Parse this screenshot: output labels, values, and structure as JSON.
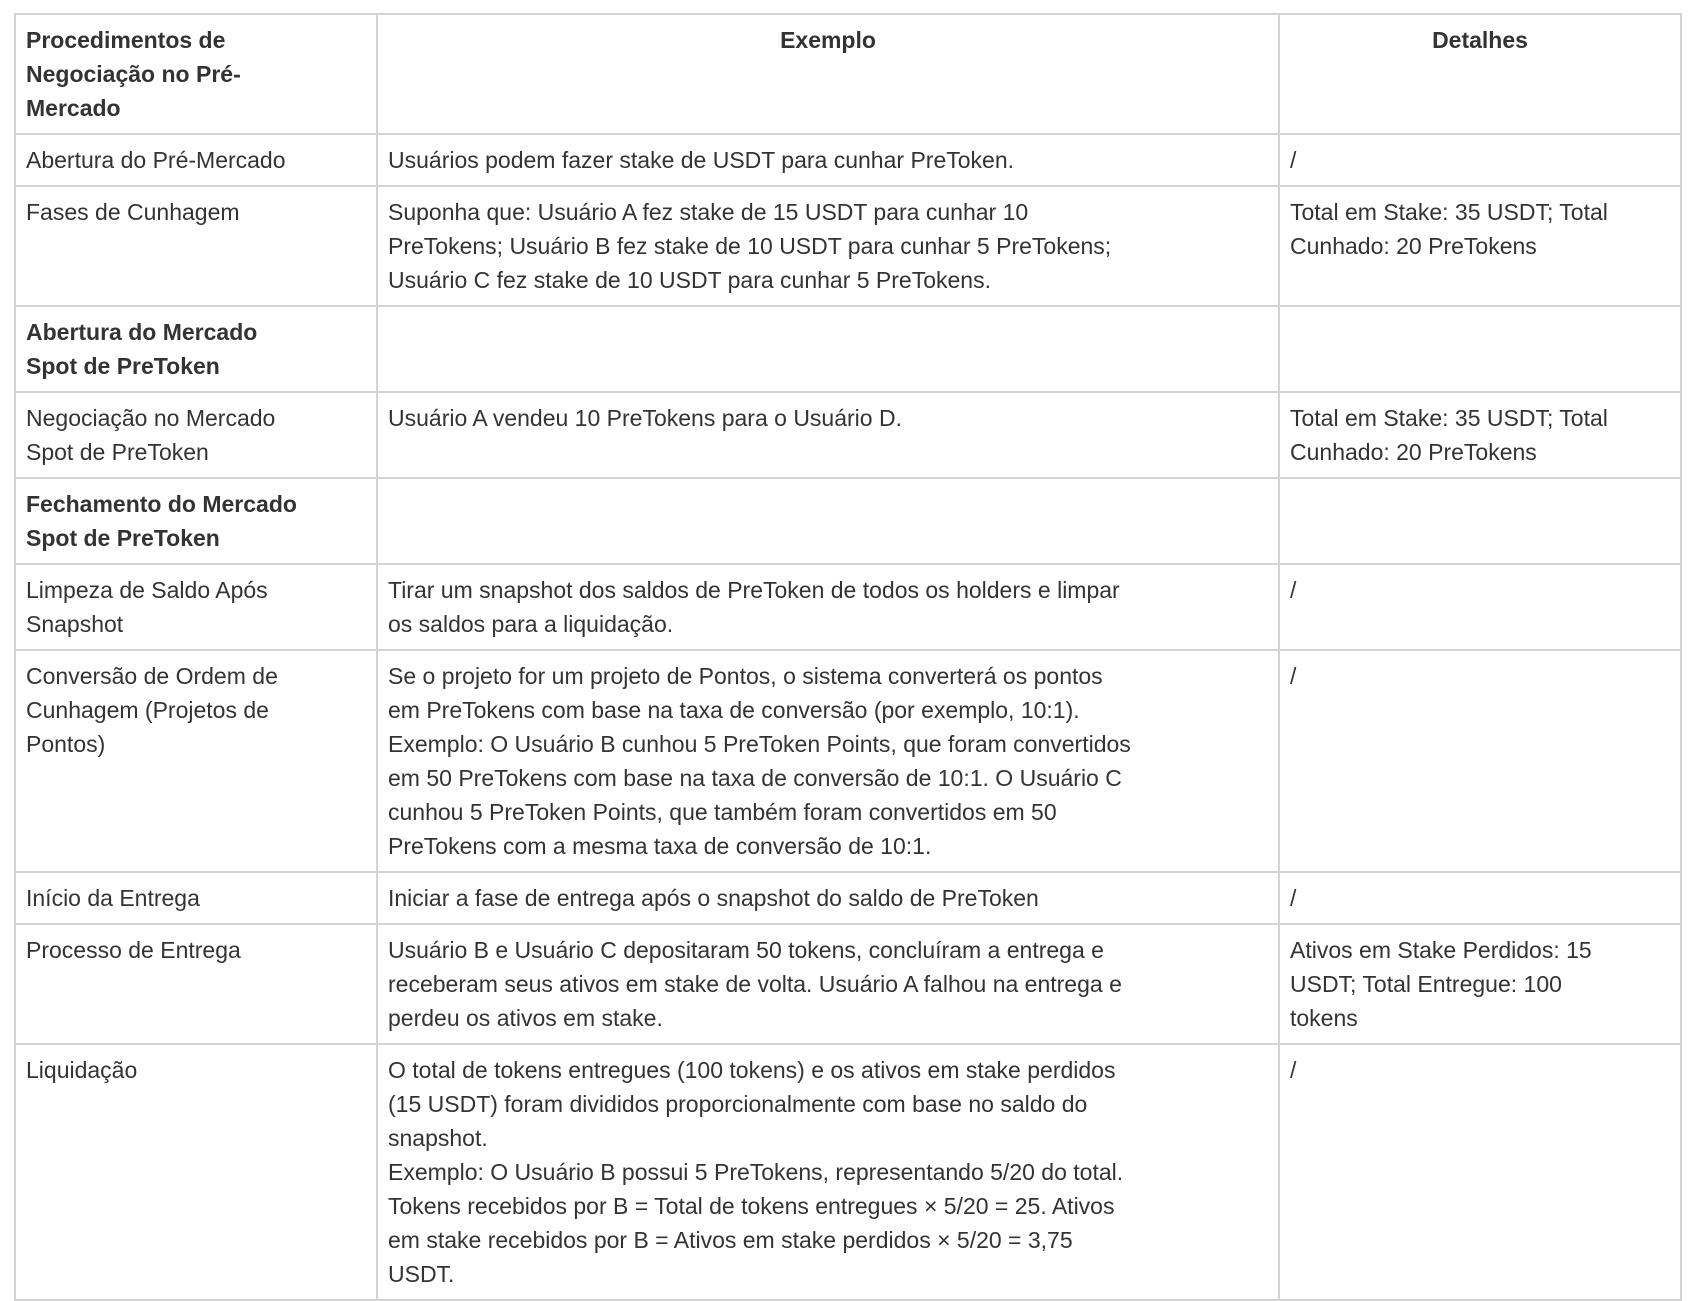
{
  "table": {
    "headers": [
      [
        "Procedimentos de",
        "Negociação no Pré-",
        "Mercado"
      ],
      [
        "Exemplo"
      ],
      [
        "Detalhes"
      ]
    ],
    "rows": [
      {
        "bold": false,
        "cells": [
          [
            "Abertura do Pré-Mercado"
          ],
          [
            "Usuários podem fazer stake de USDT para cunhar PreToken."
          ],
          [
            "/"
          ]
        ]
      },
      {
        "bold": false,
        "cells": [
          [
            "Fases de Cunhagem"
          ],
          [
            "Suponha que: Usuário A fez stake de 15 USDT para cunhar 10",
            "PreTokens; Usuário B fez stake de 10 USDT para cunhar 5 PreTokens;",
            "Usuário C fez stake de 10 USDT para cunhar 5 PreTokens."
          ],
          [
            "Total em Stake: 35 USDT; Total",
            "Cunhado: 20 PreTokens"
          ]
        ]
      },
      {
        "bold": true,
        "cells": [
          [
            "Abertura do Mercado",
            "Spot de PreToken"
          ],
          [],
          []
        ]
      },
      {
        "bold": false,
        "cells": [
          [
            "Negociação no Mercado",
            "Spot de PreToken"
          ],
          [
            "Usuário A vendeu 10 PreTokens para o Usuário D."
          ],
          [
            "Total em Stake: 35 USDT; Total",
            "Cunhado: 20 PreTokens"
          ]
        ]
      },
      {
        "bold": true,
        "cells": [
          [
            "Fechamento do Mercado",
            "Spot de PreToken"
          ],
          [],
          []
        ]
      },
      {
        "bold": false,
        "cells": [
          [
            "Limpeza de Saldo Após",
            "Snapshot"
          ],
          [
            "Tirar um snapshot dos saldos de PreToken de todos os holders e limpar",
            "os saldos para a liquidação."
          ],
          [
            "/"
          ]
        ]
      },
      {
        "bold": false,
        "cells": [
          [
            "Conversão de Ordem de",
            "Cunhagem (Projetos de",
            "Pontos)"
          ],
          [
            "Se o projeto for um projeto de Pontos, o sistema converterá os pontos",
            "em PreTokens com base na taxa de conversão (por exemplo, 10:1).",
            "Exemplo: O Usuário B cunhou 5 PreToken Points, que foram convertidos",
            "em 50 PreTokens com base na taxa de conversão de 10:1. O Usuário C",
            "cunhou 5 PreToken Points, que também foram convertidos em 50",
            "PreTokens com a mesma taxa de conversão de 10:1."
          ],
          [
            "/"
          ]
        ]
      },
      {
        "bold": false,
        "cells": [
          [
            "Início da Entrega"
          ],
          [
            "Iniciar a fase de entrega após o snapshot do saldo de PreToken"
          ],
          [
            "/"
          ]
        ]
      },
      {
        "bold": false,
        "cells": [
          [
            "Processo de Entrega"
          ],
          [
            "Usuário B e Usuário C depositaram 50 tokens, concluíram a entrega e",
            "receberam seus ativos em stake de volta. Usuário A falhou na entrega e",
            "perdeu os ativos em stake."
          ],
          [
            "Ativos em Stake Perdidos: 15",
            "USDT; Total Entregue: 100",
            "tokens"
          ]
        ]
      },
      {
        "bold": false,
        "cells": [
          [
            "Liquidação"
          ],
          [
            "O total de tokens entregues (100 tokens) e os ativos em stake perdidos",
            "(15 USDT) foram divididos proporcionalmente com base no saldo do",
            "snapshot.",
            "Exemplo: O Usuário B possui 5 PreTokens, representando 5/20 do total.",
            "Tokens recebidos por B = Total de tokens entregues × 5/20 = 25. Ativos",
            "em stake recebidos por B = Ativos em stake perdidos × 5/20 = 3,75",
            "USDT."
          ],
          [
            "/"
          ]
        ]
      }
    ]
  }
}
